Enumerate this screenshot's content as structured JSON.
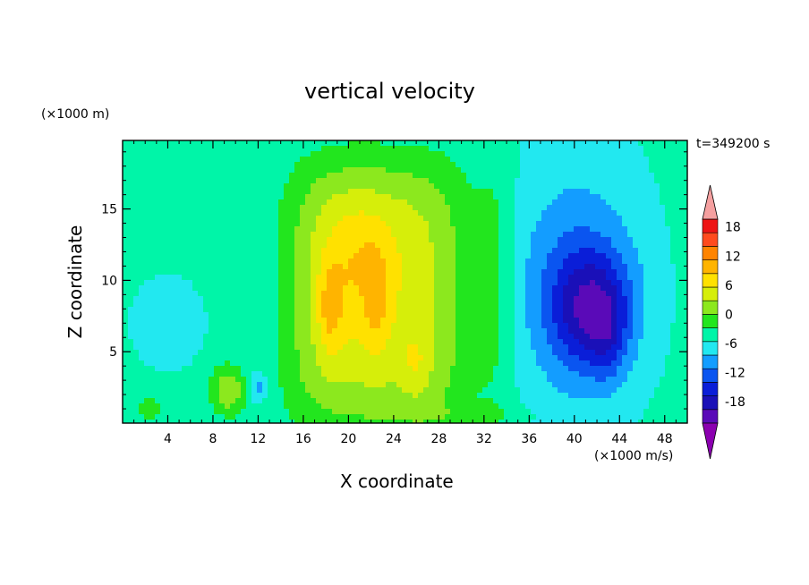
{
  "chart_data": {
    "type": "heatmap",
    "title": "vertical velocity",
    "xlabel": "X coordinate",
    "ylabel": "Z coordinate",
    "x_unit_label": "(×1000 m/s)",
    "y_unit_label": "(×1000 m)",
    "time_label": "t=349200 s",
    "xlim": [
      0,
      50
    ],
    "ylim": [
      0,
      19.8
    ],
    "x_ticks": [
      4,
      8,
      12,
      16,
      20,
      24,
      28,
      32,
      36,
      40,
      44,
      48
    ],
    "y_ticks": [
      5,
      10,
      15
    ],
    "colorbar": {
      "levels": [
        -21,
        -18,
        -15,
        -12,
        -9,
        -6,
        -3,
        0,
        3,
        6,
        9,
        12,
        15,
        18,
        21
      ],
      "tick_labels": [
        "18",
        "12",
        "6",
        "0",
        "-6",
        "-12",
        "-18"
      ],
      "tick_values": [
        18,
        12,
        6,
        0,
        -6,
        -12,
        -18
      ],
      "colors": [
        "#8b00b0",
        "#5a0ab8",
        "#1a10b8",
        "#0a1ed8",
        "#0a55f0",
        "#139dff",
        "#22e8f0",
        "#00f5a8",
        "#22e61e",
        "#8ce81e",
        "#d6ee0a",
        "#ffe100",
        "#ffb400",
        "#ff8400",
        "#ff4b1e",
        "#ee1414",
        "#f5a0a0"
      ],
      "under_color": "#8b00b0",
      "over_color": "#f5a0a0"
    },
    "features": [
      {
        "x": 18.5,
        "z": 7.5,
        "w": 7.0,
        "peak": 14
      },
      {
        "x": 26.0,
        "z": 4.0,
        "w": -2.0,
        "peak": 13
      },
      {
        "x": 9.0,
        "z": 2.3,
        "w": 3.0,
        "peak": 8
      },
      {
        "x": 41.5,
        "z": 7.5,
        "w": 9.0,
        "peak": -15
      },
      {
        "x": 12.0,
        "z": 2.3,
        "w": 2.0,
        "peak": -8
      }
    ]
  }
}
